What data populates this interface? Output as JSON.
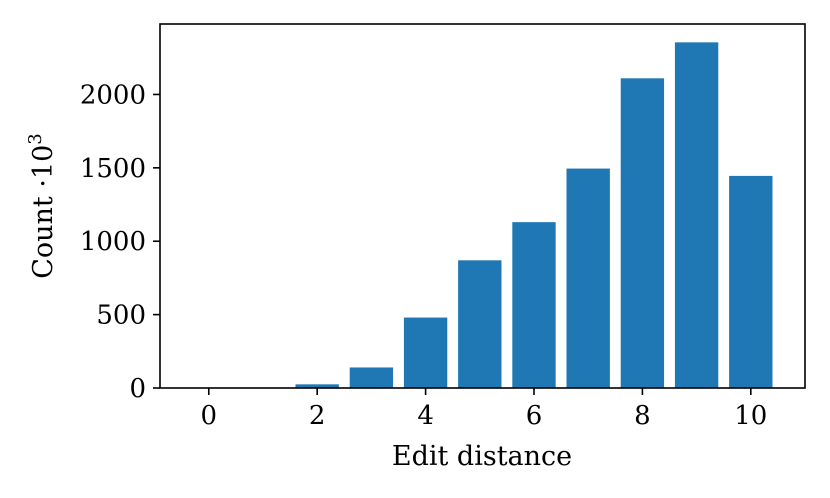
{
  "chart_data": {
    "type": "bar",
    "x": [
      0,
      1,
      2,
      3,
      4,
      5,
      6,
      7,
      8,
      9,
      10
    ],
    "values": [
      0,
      2,
      25,
      140,
      480,
      870,
      1130,
      1495,
      2110,
      2355,
      1445
    ],
    "xlabel": "Edit distance",
    "ylabel_base": "Count ·10",
    "ylabel_exponent": "3",
    "xlim": [
      -0.9,
      11.0
    ],
    "ylim": [
      0,
      2480
    ],
    "xticks": [
      0,
      2,
      4,
      6,
      8,
      10
    ],
    "yticks": [
      0,
      500,
      1000,
      1500,
      2000
    ],
    "grid": false,
    "bar_color": "#1f77b4"
  }
}
